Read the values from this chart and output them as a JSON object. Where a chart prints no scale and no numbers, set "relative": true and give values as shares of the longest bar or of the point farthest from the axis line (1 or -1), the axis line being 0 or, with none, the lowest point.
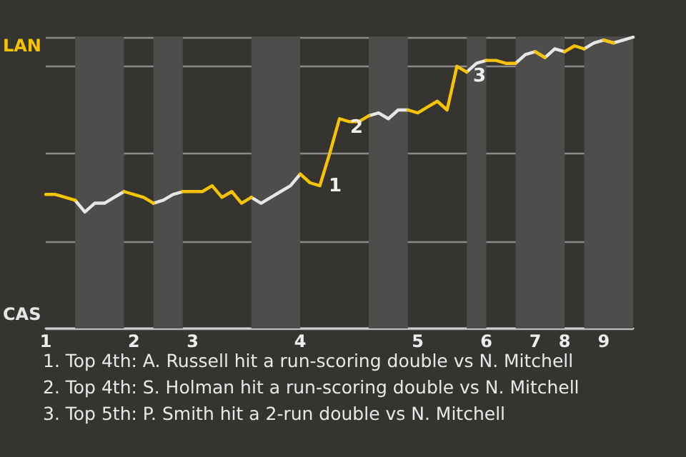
{
  "chart_data": {
    "type": "line",
    "categories": [
      "1",
      null,
      null,
      null,
      null,
      null,
      null,
      null,
      null,
      "2",
      null,
      null,
      null,
      null,
      null,
      "3",
      null,
      null,
      null,
      null,
      null,
      null,
      null,
      null,
      null,
      null,
      "4",
      null,
      null,
      null,
      null,
      null,
      null,
      null,
      null,
      null,
      null,
      null,
      "5",
      null,
      null,
      null,
      null,
      null,
      null,
      "6",
      null,
      null,
      null,
      null,
      "7",
      null,
      null,
      "8",
      null,
      null,
      null,
      "9",
      null,
      null,
      null
    ],
    "series": [
      {
        "color": "#f5c400",
        "values": [
          0.46,
          0.46,
          0.45,
          0.44,
          null,
          null,
          null,
          null,
          0.47,
          0.46,
          0.45,
          0.43,
          null,
          null,
          0.47,
          0.47,
          0.47,
          0.49,
          0.45,
          0.47,
          0.43,
          0.45,
          null,
          null,
          null,
          null,
          0.53,
          0.5,
          0.49,
          0.6,
          0.72,
          0.71,
          0.71,
          0.73,
          null,
          null,
          null,
          0.75,
          0.74,
          0.76,
          0.78,
          0.75,
          0.9,
          0.88,
          null,
          0.92,
          0.92,
          0.91,
          0.91,
          null,
          0.95,
          0.93,
          null,
          0.95,
          0.97,
          0.96,
          null,
          0.99,
          0.98,
          null,
          null
        ],
        "name": null
      },
      {
        "color": "#e6e6e6",
        "values": [
          null,
          null,
          null,
          0.44,
          0.4,
          0.43,
          0.43,
          0.45,
          0.47,
          null,
          null,
          0.43,
          0.44,
          0.46,
          0.47,
          null,
          null,
          null,
          null,
          null,
          null,
          0.45,
          0.43,
          0.45,
          0.47,
          0.49,
          0.53,
          null,
          null,
          null,
          null,
          null,
          null,
          0.73,
          0.74,
          0.72,
          0.75,
          0.75,
          null,
          null,
          null,
          null,
          null,
          0.88,
          0.91,
          0.92,
          null,
          null,
          0.91,
          0.94,
          0.95,
          0.93,
          0.96,
          0.95,
          null,
          0.96,
          0.98,
          0.99,
          0.98,
          0.99,
          1
        ]
      }
    ],
    "relative": true,
    "grid": "y",
    "marker": "none",
    "line_style": "solid",
    "annotations": [
      "LAN",
      "CAS",
      "1",
      "2",
      "3",
      "1. Top 4th: A. Russell hit a run-scoring double vs N. Mitchell",
      "2. Top 4th: S. Holman hit a run-scoring double vs N. Mitchell",
      "3. Top 5th: P. Smith hit a 2-run double vs N. Mitchell"
    ]
  }
}
